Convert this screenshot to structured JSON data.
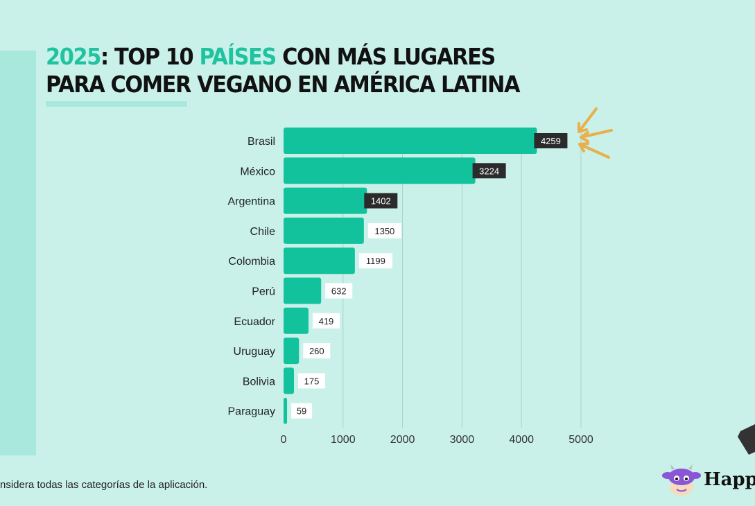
{
  "title": {
    "line1_year": "2025",
    "line1_mid": ": TOP 10 ",
    "line1_accent": "PAÍSES",
    "line1_end": " CON MÁS LUGARES",
    "line2": "PARA COMER VEGANO EN AMÉRICA LATINA"
  },
  "colors": {
    "accent": "#1fc3a0",
    "bar": "#12c29c",
    "dark_label": "#2b2b2b",
    "arrow": "#e8b04b",
    "background": "#c9f1ea"
  },
  "chart_data": {
    "type": "bar",
    "orientation": "horizontal",
    "title": "2025: TOP 10 PAÍSES CON MÁS LUGARES PARA COMER VEGANO EN AMÉRICA LATINA",
    "categories": [
      "Brasil",
      "México",
      "Argentina",
      "Chile",
      "Colombia",
      "Perú",
      "Ecuador",
      "Uruguay",
      "Bolivia",
      "Paraguay"
    ],
    "values": [
      4259,
      3224,
      1402,
      1350,
      1199,
      632,
      419,
      260,
      175,
      59
    ],
    "highlighted": [
      true,
      true,
      true,
      false,
      false,
      false,
      false,
      false,
      false,
      false
    ],
    "xlabel": "",
    "ylabel": "",
    "xlim": [
      0,
      5000
    ],
    "xticks": [
      "0",
      "1000",
      "2000",
      "3000",
      "4000",
      "5000"
    ],
    "grid": true,
    "annotation": "arrows pointing to Brasil"
  },
  "footnote": "nsidera todas las categorías de la aplicación.",
  "logo": {
    "text": "Happ",
    "icon": "cow-mascot-icon"
  }
}
